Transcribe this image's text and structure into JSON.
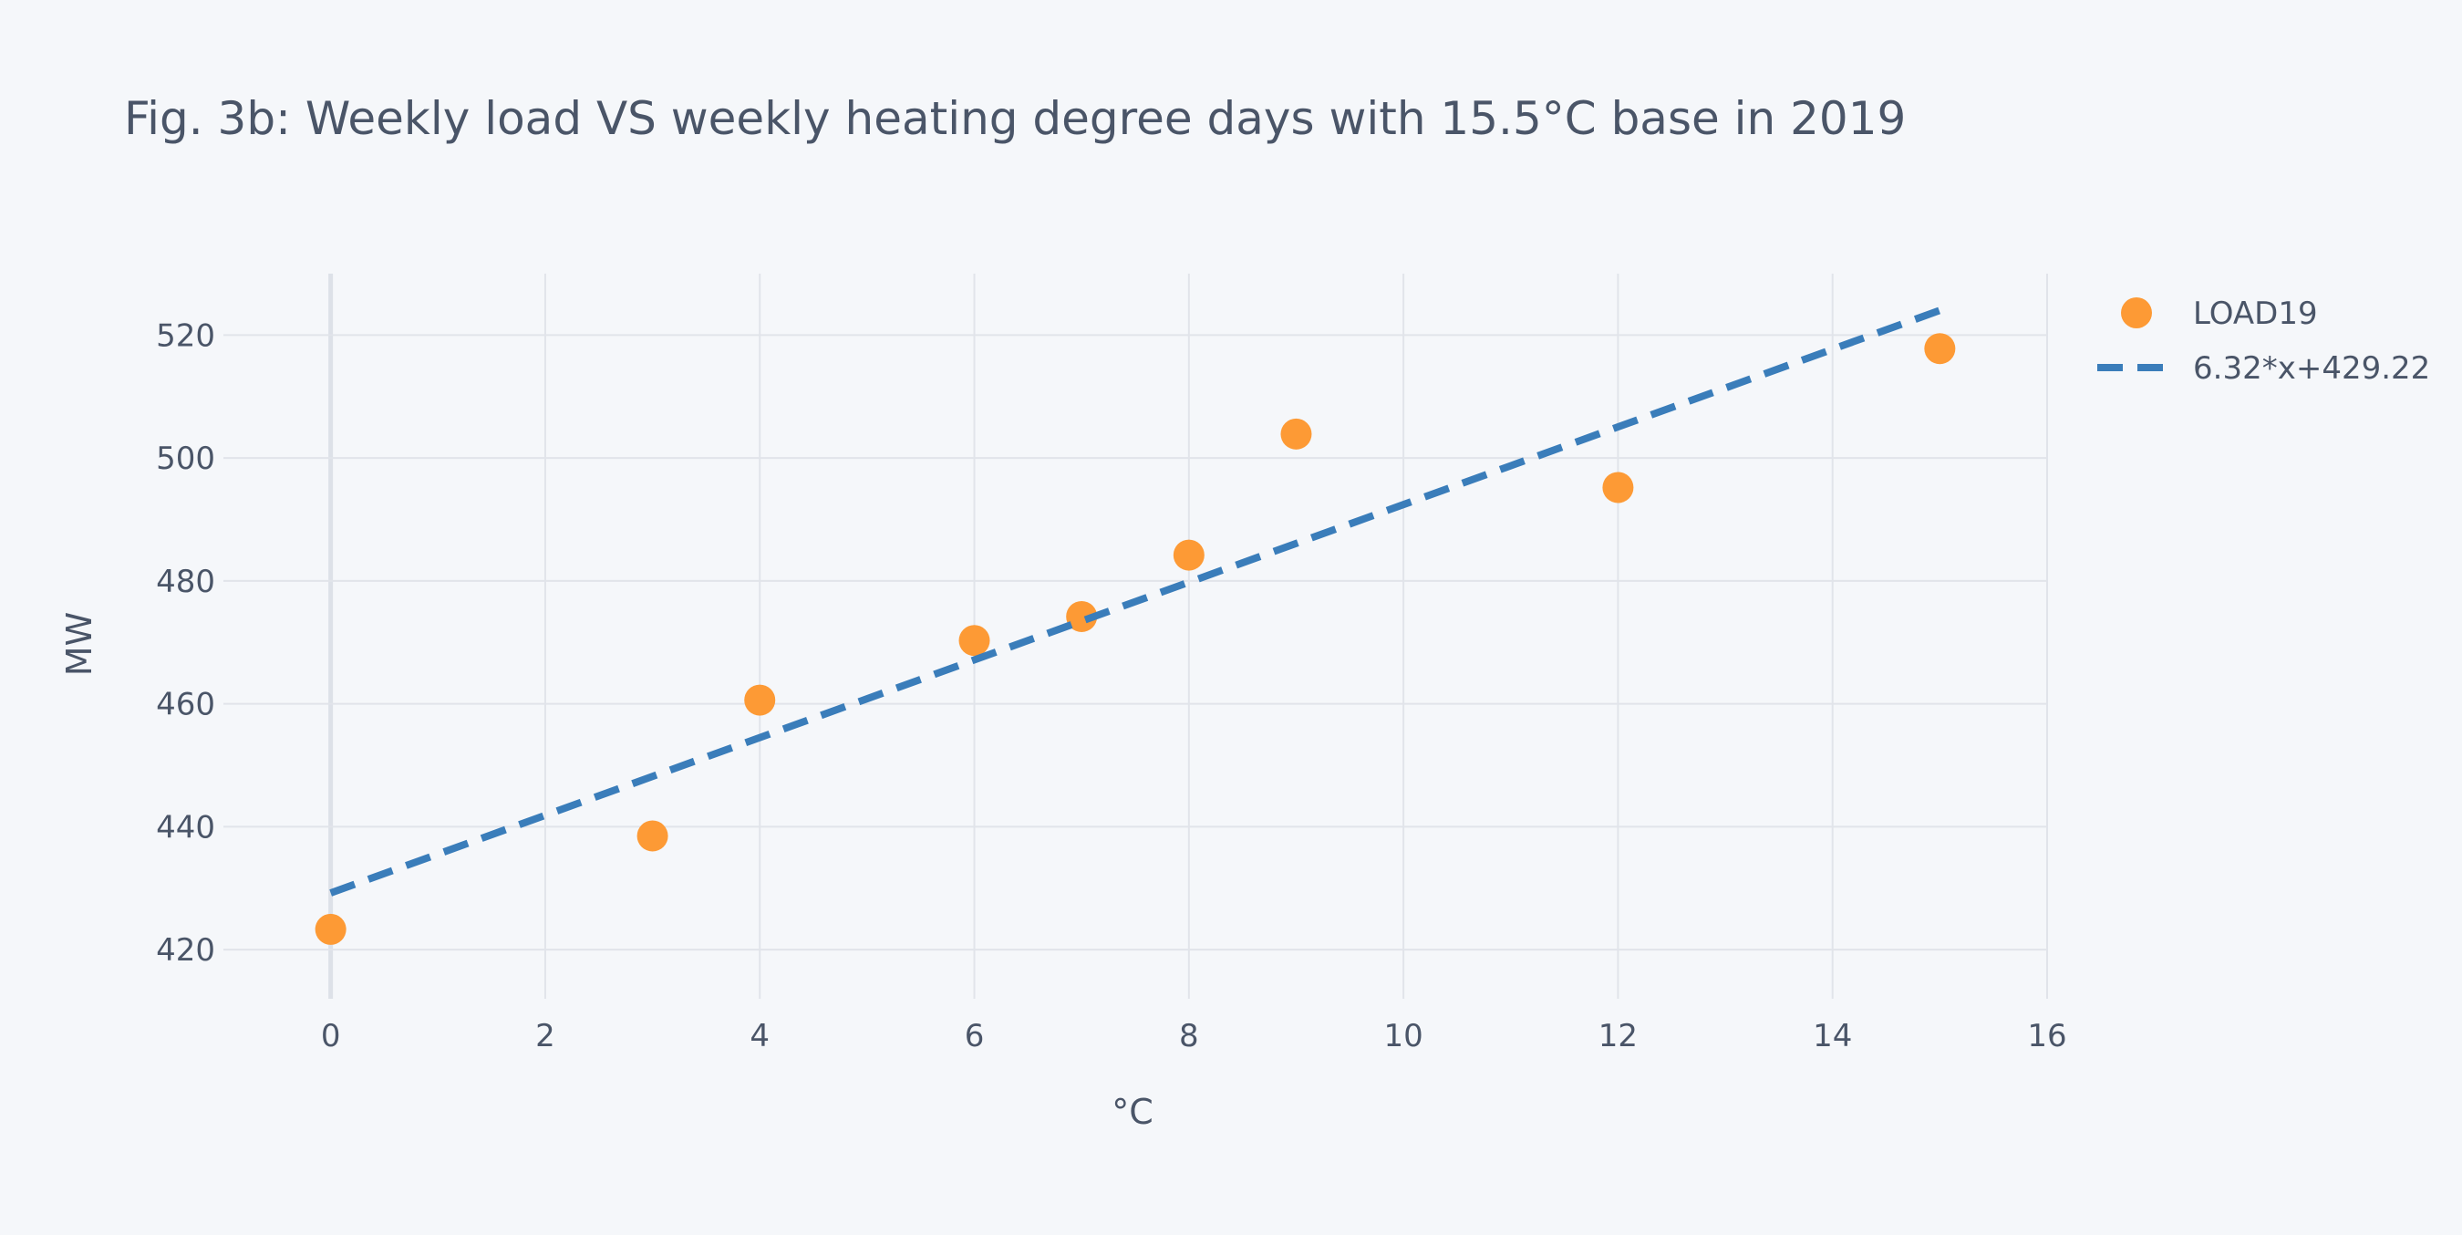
{
  "chart_data": {
    "type": "scatter",
    "title": "Fig. 3b: Weekly load VS weekly heating degree days with 15.5°C base in 2019",
    "xlabel": "°C",
    "ylabel": "MW",
    "xlim": [
      -1,
      16
    ],
    "ylim": [
      412,
      530
    ],
    "xticks": [
      0,
      2,
      4,
      6,
      8,
      10,
      12,
      14,
      16
    ],
    "yticks": [
      420,
      440,
      460,
      480,
      500,
      520
    ],
    "grid": true,
    "legend_position": "top-right",
    "series": [
      {
        "name": "LOAD19",
        "kind": "markers",
        "color": "#fd9a35",
        "x": [
          0,
          3,
          4,
          6,
          7,
          8,
          9,
          12,
          15
        ],
        "y": [
          423.3,
          438.5,
          460.6,
          470.3,
          474.2,
          484.2,
          503.9,
          495.2,
          517.8
        ]
      },
      {
        "name": "6.32*x+429.22",
        "kind": "dashed-line",
        "color": "#3a7dba",
        "x": [
          0,
          15
        ],
        "y": [
          429.22,
          524.02
        ]
      }
    ]
  },
  "colors": {
    "background": "#f5f7fa",
    "grid": "#e1e4ea",
    "zeroline": "#dde1e8",
    "text": "#4a5568"
  }
}
